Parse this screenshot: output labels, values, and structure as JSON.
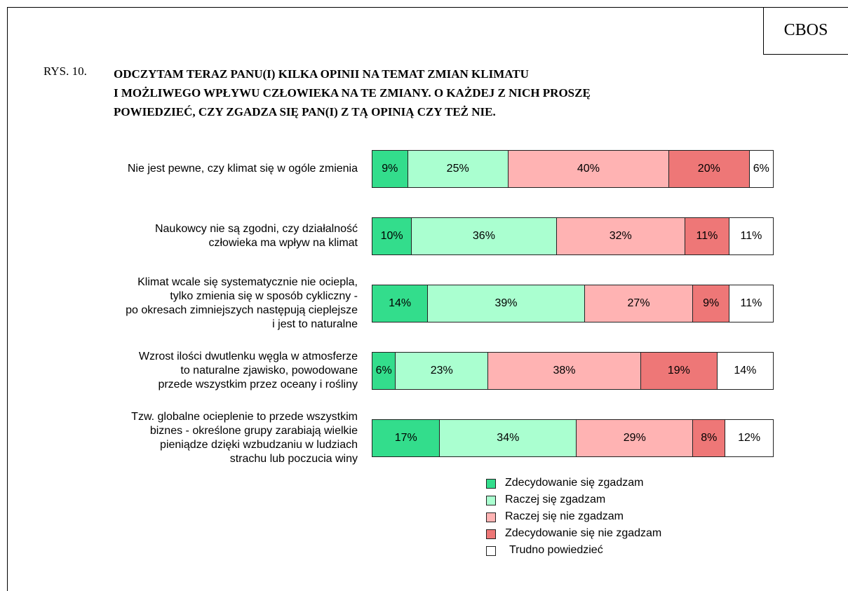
{
  "header": "CBOS",
  "chart_data": {
    "type": "stacked_barh",
    "figure_label": "RYS. 10.",
    "title": "ODCZYTAM TERAZ PANU(I) KILKA OPINII NA TEMAT ZMIAN KLIMATU\nI MOŻLIWEGO WPŁYWU CZŁOWIEKA NA TE ZMIANY. O KAŻDEJ Z NICH PROSZĘ\nPOWIEDZIEĆ, CZY ZGADZA SIĘ PAN(I) Z TĄ OPINIĄ CZY TEŻ NIE.",
    "categories": [
      "Nie jest pewne, czy klimat się w ogóle zmienia",
      "Naukowcy nie są zgodni, czy działalność\nczłowieka ma wpływ na klimat",
      "Klimat wcale się systematycznie nie ociepla,\ntylko zmienia się w sposób cykliczny -\npo okresach zimniejszych następują cieplejsze\ni jest to naturalne",
      "Wzrost ilości dwutlenku węgla w atmosferze\nto naturalne zjawisko, powodowane\nprzede wszystkim przez oceany i rośliny",
      "Tzw. globalne ocieplenie to przede wszystkim\nbiznes - określone grupy zarabiają wielkie\npieniądze dzięki wzbudzaniu w ludziach\nstrachu lub poczucia winy"
    ],
    "xlim": [
      0,
      100
    ],
    "series": [
      {
        "name": "Zdecydowanie się zgadzam",
        "color": "#33dd8c",
        "values": [
          9,
          10,
          14,
          6,
          17
        ],
        "value_labels": [
          "9%",
          "10%",
          "14%",
          "6%",
          "17%"
        ]
      },
      {
        "name": "Raczej się zgadzam",
        "color": "#aaffd0",
        "values": [
          25,
          36,
          39,
          23,
          34
        ],
        "value_labels": [
          "25%",
          "36%",
          "39%",
          "23%",
          "34%"
        ]
      },
      {
        "name": "Raczej się nie zgadzam",
        "color": "#ffb3b3",
        "values": [
          40,
          32,
          27,
          38,
          29
        ],
        "value_labels": [
          "40%",
          "32%",
          "27%",
          "38%",
          "29%"
        ]
      },
      {
        "name": "Zdecydowanie się nie zgadzam",
        "color": "#ee7777",
        "values": [
          20,
          11,
          9,
          19,
          8
        ],
        "value_labels": [
          "20%",
          "11%",
          "9%",
          "19%",
          "8%"
        ]
      },
      {
        "name": "Trudno powiedzieć",
        "color": "#ffffff",
        "values": [
          6,
          11,
          11,
          14,
          12
        ],
        "value_labels": [
          "6%",
          "11%",
          "11%",
          "14%",
          "12%"
        ]
      }
    ]
  }
}
